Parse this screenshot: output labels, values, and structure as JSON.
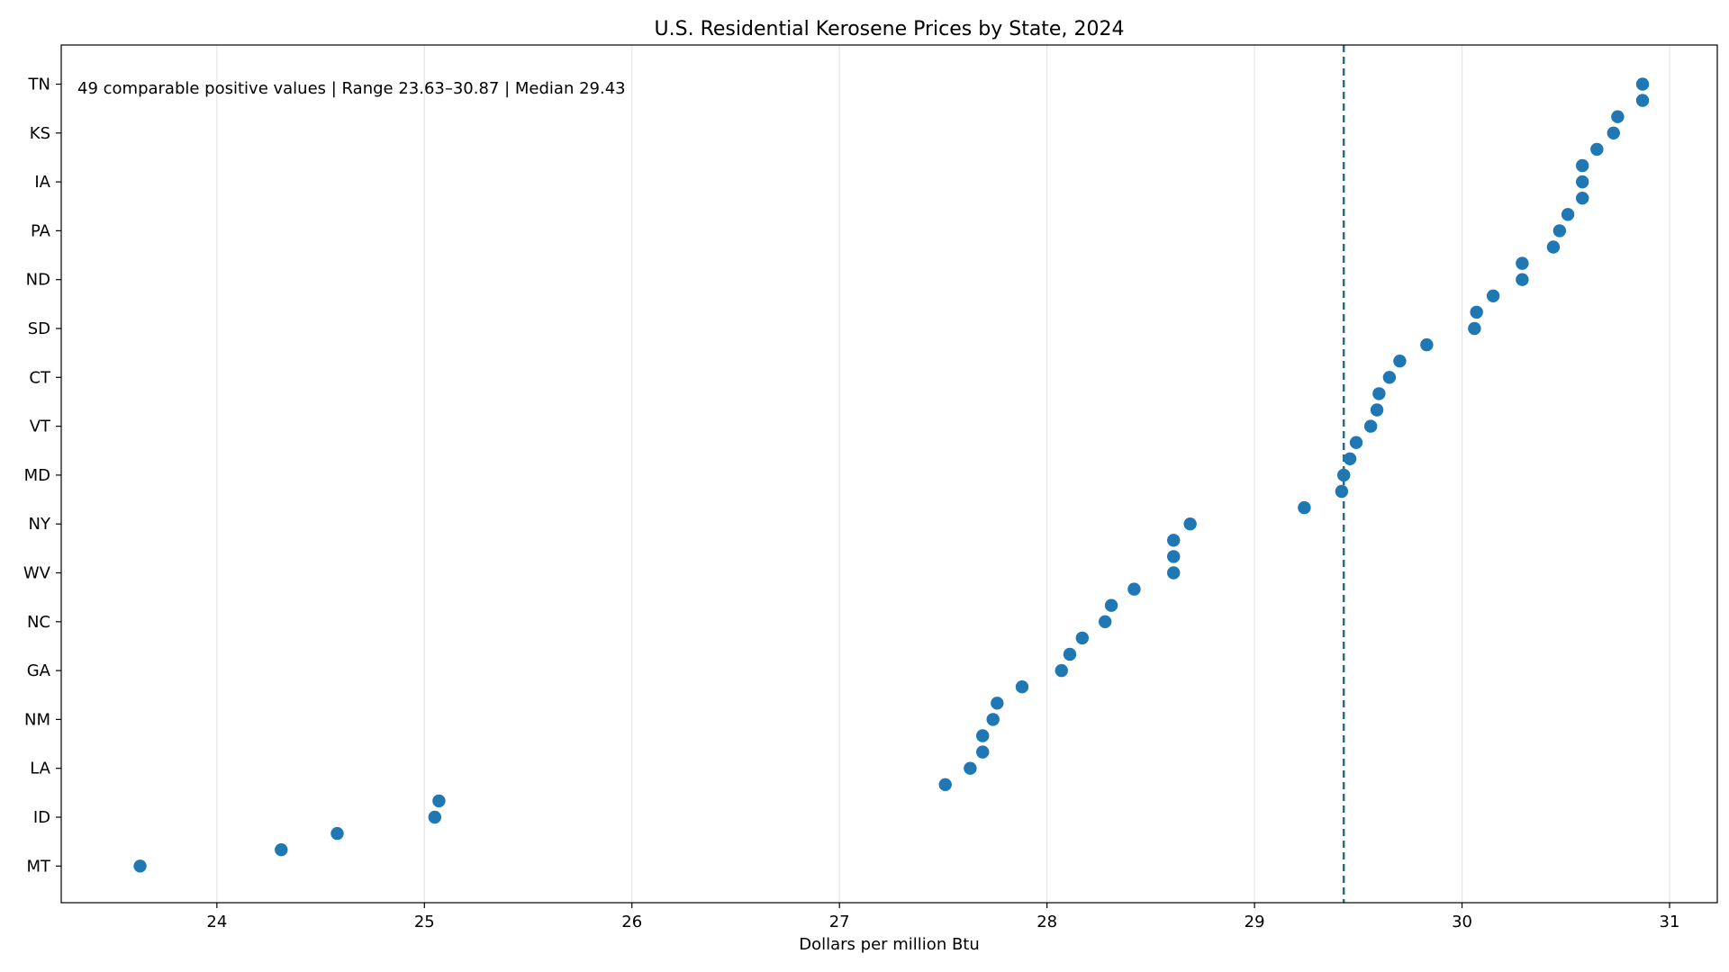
{
  "chart_data": {
    "type": "scatter",
    "title": "U.S. Residential Kerosene Prices by State, 2024",
    "xlabel": "Dollars per million Btu",
    "ylabel": "",
    "annotation": "49 comparable positive values | Range 23.63–30.87 | Median 29.43",
    "xlim": [
      23.25,
      31.23
    ],
    "x_ticks": [
      24,
      25,
      26,
      27,
      28,
      29,
      30,
      31
    ],
    "y_tick_labels": [
      "TN",
      "KS",
      "IA",
      "PA",
      "ND",
      "SD",
      "CT",
      "VT",
      "MD",
      "NY",
      "WV",
      "NC",
      "GA",
      "NM",
      "LA",
      "ID",
      "MT"
    ],
    "median": 29.43,
    "grid": "vertical",
    "marker_color": "#1f77b4",
    "median_line_color": "#1f6f8b",
    "values_top_to_bottom": [
      30.87,
      30.87,
      30.75,
      30.73,
      30.65,
      30.58,
      30.58,
      30.58,
      30.51,
      30.47,
      30.44,
      30.29,
      30.29,
      30.15,
      30.07,
      30.06,
      29.83,
      29.7,
      29.65,
      29.6,
      29.59,
      29.56,
      29.49,
      29.46,
      29.43,
      29.42,
      29.24,
      28.69,
      28.61,
      28.61,
      28.61,
      28.42,
      28.31,
      28.28,
      28.17,
      28.11,
      28.07,
      27.88,
      27.76,
      27.74,
      27.69,
      27.69,
      27.63,
      27.51,
      25.07,
      25.05,
      24.58,
      24.31,
      23.63
    ]
  }
}
